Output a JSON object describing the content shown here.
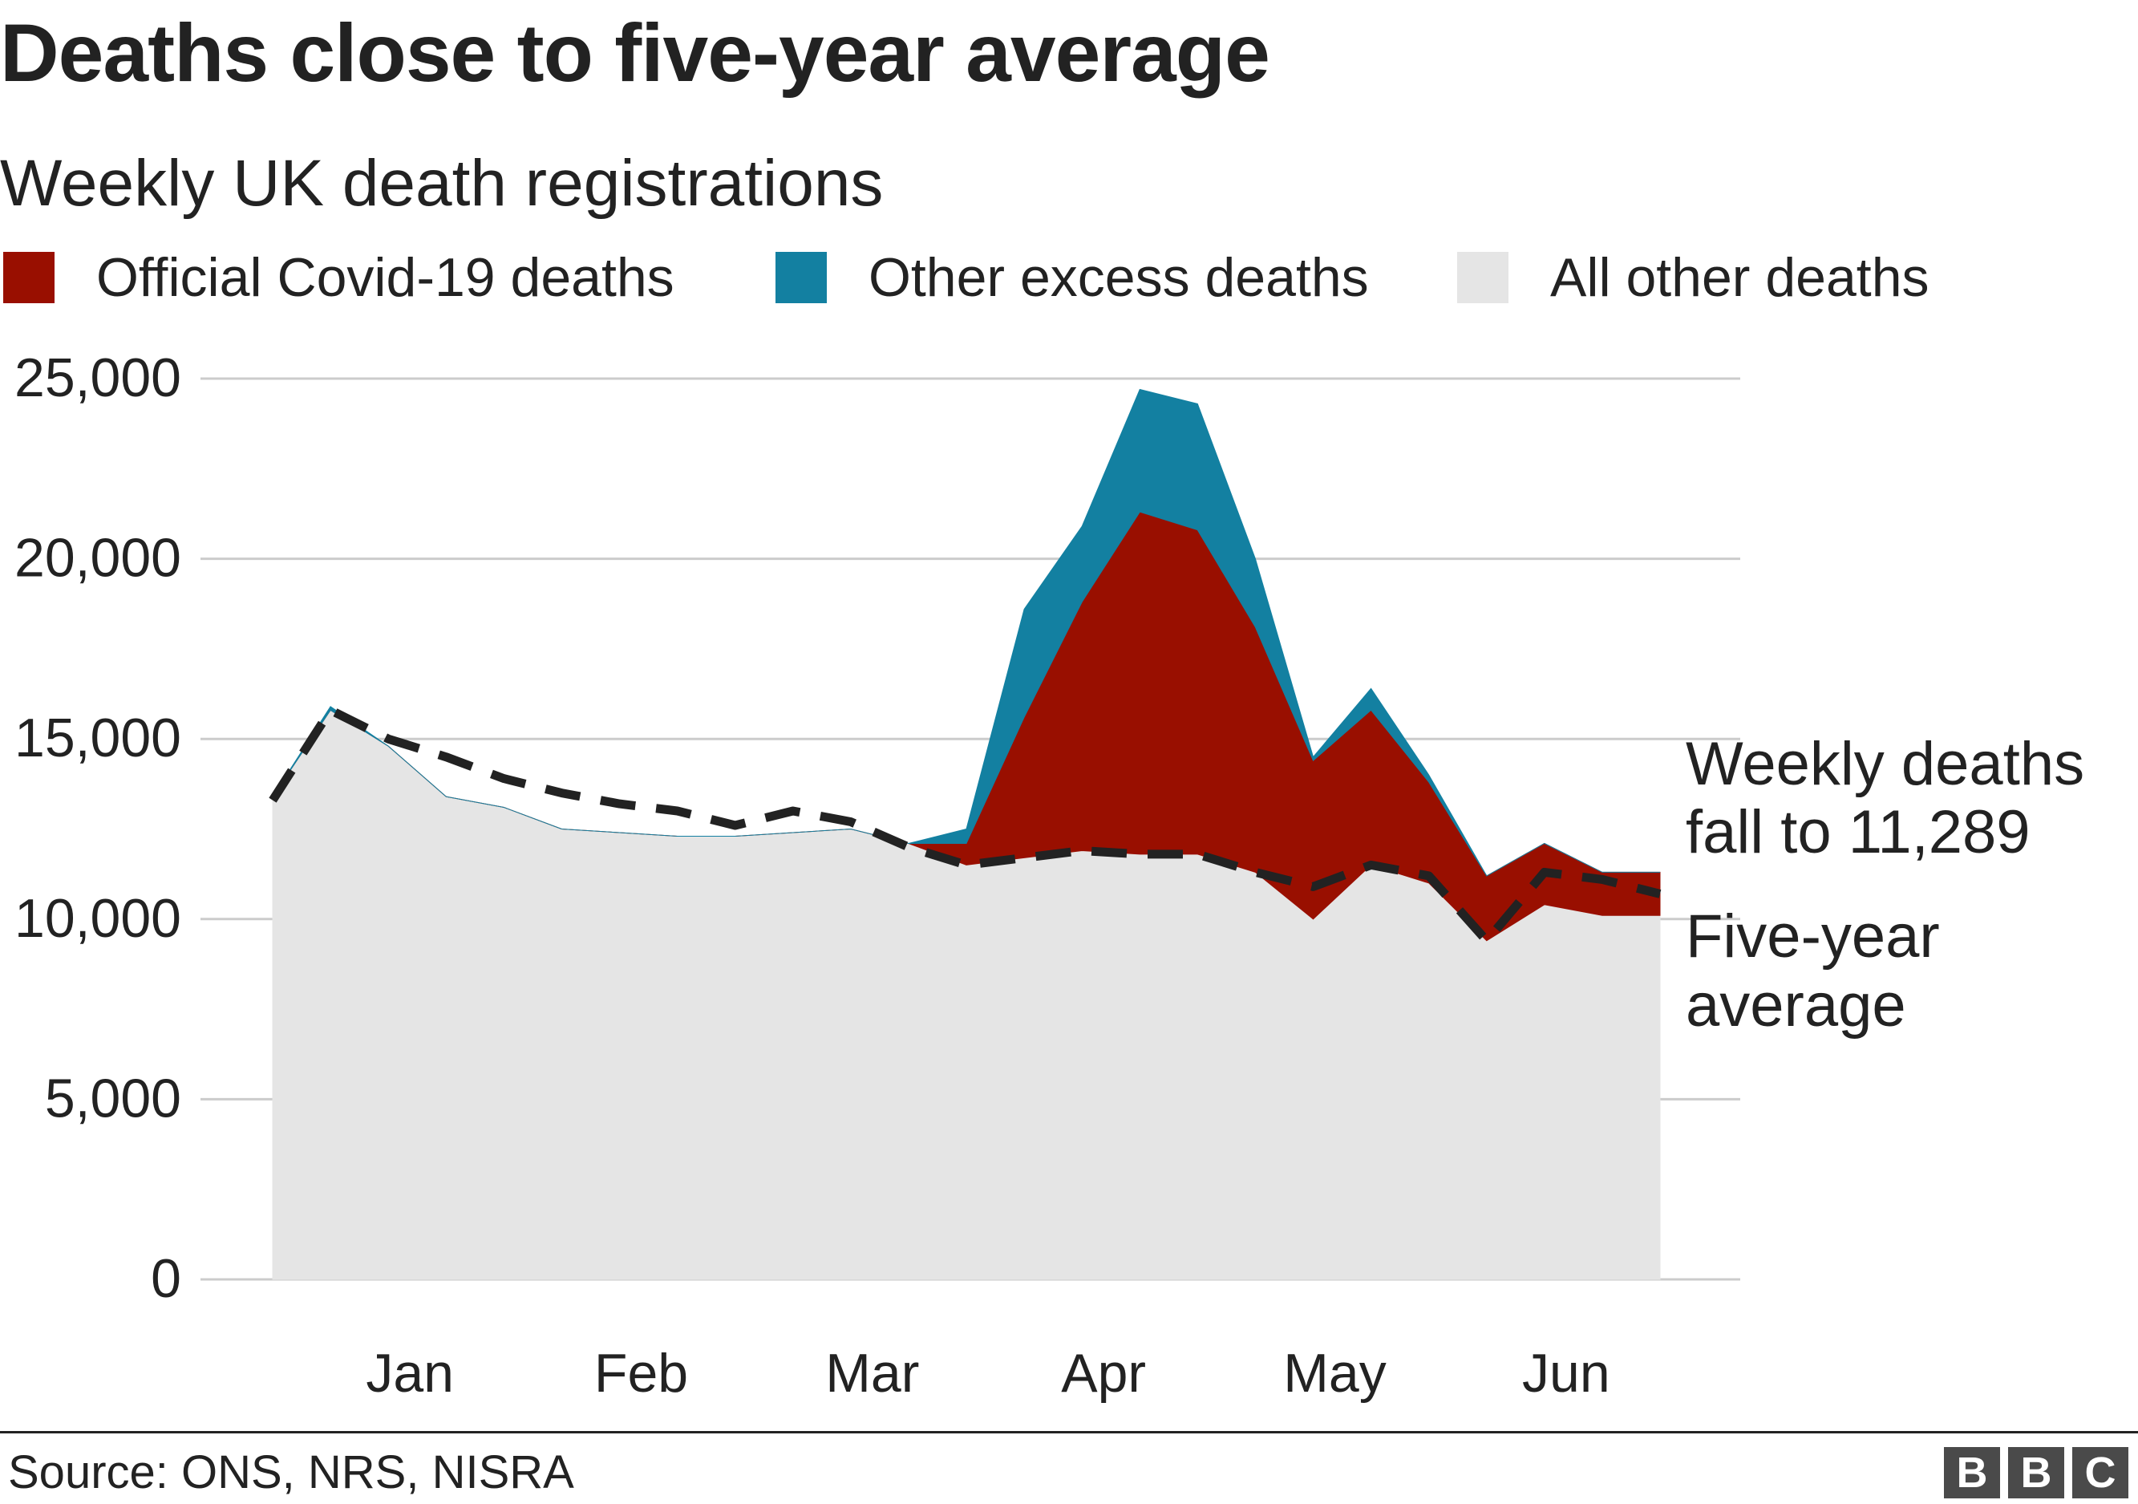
{
  "title": "Deaths close to five-year average",
  "subtitle": "Weekly UK death registrations",
  "legend": [
    {
      "label": "Official Covid-19 deaths",
      "color": "#990F00"
    },
    {
      "label": "Other excess deaths",
      "color": "#1380A1"
    },
    {
      "label": "All other deaths",
      "color": "#E5E5E5"
    }
  ],
  "source": "Source: ONS, NRS, NISRA",
  "logo_letters": [
    "B",
    "B",
    "C"
  ],
  "chart_data": {
    "type": "area",
    "x": [
      0,
      1,
      2,
      3,
      4,
      5,
      6,
      7,
      8,
      9,
      10,
      11,
      12,
      13,
      14,
      15,
      16,
      17,
      18,
      19,
      20,
      21,
      22,
      23,
      24
    ],
    "x_tick_labels": [
      {
        "x": 2,
        "label": "Jan"
      },
      {
        "x": 6,
        "label": "Feb"
      },
      {
        "x": 10,
        "label": "Mar"
      },
      {
        "x": 14,
        "label": "Apr"
      },
      {
        "x": 18,
        "label": "May"
      },
      {
        "x": 22,
        "label": "Jun"
      }
    ],
    "series": [
      {
        "name": "All other deaths",
        "color": "#E5E5E5",
        "values": [
          13400,
          15800,
          14800,
          13400,
          13100,
          12500,
          12400,
          12300,
          12300,
          12400,
          12500,
          12100,
          11500,
          11700,
          11900,
          11800,
          11800,
          11300,
          10000,
          11500,
          11000,
          9400,
          10400,
          10100,
          10100
        ]
      },
      {
        "name": "Official Covid-19 deaths",
        "color": "#990F00",
        "values": [
          0,
          0,
          0,
          0,
          0,
          0,
          0,
          0,
          0,
          0,
          0,
          0,
          600,
          3900,
          6900,
          9500,
          9000,
          6800,
          4400,
          4300,
          2800,
          1800,
          1700,
          1200,
          1200
        ]
      },
      {
        "name": "Other excess deaths",
        "color": "#1380A1",
        "values": [
          0,
          100,
          0,
          0,
          0,
          0,
          0,
          0,
          0,
          0,
          0,
          0,
          400,
          3000,
          2100,
          3400,
          3500,
          1900,
          100,
          600,
          200,
          0,
          0,
          0,
          0
        ]
      }
    ],
    "average": {
      "name": "Five-year average",
      "values": [
        13300,
        15800,
        15000,
        14500,
        13900,
        13500,
        13200,
        13000,
        12600,
        13000,
        12700,
        12000,
        11500,
        11700,
        11900,
        11800,
        11800,
        11300,
        10900,
        11500,
        11200,
        9400,
        11300,
        11100,
        10700
      ]
    },
    "annotations": [
      {
        "text": "Weekly deaths fall to 11,289",
        "lines": [
          "Weekly deaths",
          "fall to 11,289"
        ]
      },
      {
        "text": "Five-year average",
        "lines": [
          "Five-year",
          "average"
        ]
      }
    ],
    "y_ticks": [
      "0",
      "5,000",
      "10,000",
      "15,000",
      "20,000",
      "25,000"
    ],
    "ylim": [
      0,
      25000
    ],
    "grid": true,
    "legend_position": "top"
  }
}
